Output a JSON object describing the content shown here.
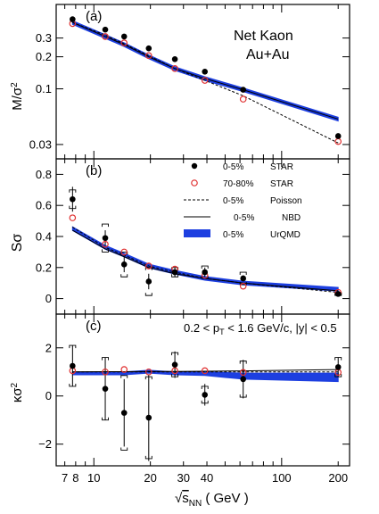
{
  "figure": {
    "panel_a_label": "(a)",
    "panel_b_label": "(b)",
    "panel_c_label": "(c)",
    "system_line1": "Net Kaon",
    "system_line2": "Au+Au",
    "kinematic_cut": "0.2 < p_T < 1.6 GeV/c, |y| < 0.5",
    "xlabel": "√s_NN ( GeV )"
  },
  "legend": {
    "star_central": {
      "centrality": "0-5%",
      "label": "STAR"
    },
    "star_peripheral": {
      "centrality": "70-80%",
      "label": "STAR"
    },
    "poisson": {
      "centrality": "0-5%",
      "label": "Poisson"
    },
    "nbd": {
      "centrality": "0-5%",
      "label": "NBD"
    },
    "urqmd": {
      "centrality": "0-5%",
      "label": "UrQMD"
    }
  },
  "chart_data": [
    {
      "type": "scatter",
      "panel": "a",
      "ylabel": "M/σ²",
      "yscale": "log",
      "ylim": [
        0.022,
        0.62
      ],
      "xscale": "log",
      "xlim": [
        6.3,
        230
      ],
      "x_ticks": [
        7,
        8,
        10,
        20,
        30,
        40,
        100,
        200
      ],
      "x_tick_labels": [
        "7",
        "8",
        "10",
        "20",
        "30",
        "40",
        "100",
        "200"
      ],
      "y_ticks": [
        0.03,
        0.1,
        0.2,
        0.3
      ],
      "y_tick_labels": [
        "0.03",
        "0.1",
        "0.2",
        "0.3"
      ],
      "series": [
        {
          "name": "0-5% STAR",
          "x": [
            7.7,
            11.5,
            14.5,
            19.6,
            27,
            39,
            62.4,
            200
          ],
          "y": [
            0.45,
            0.36,
            0.31,
            0.24,
            0.19,
            0.145,
            0.098,
            0.036
          ]
        },
        {
          "name": "70-80% STAR",
          "x": [
            7.7,
            11.5,
            14.5,
            19.6,
            27,
            39,
            62.4,
            200
          ],
          "y": [
            0.41,
            0.31,
            0.27,
            0.205,
            0.155,
            0.12,
            0.08,
            0.032
          ]
        },
        {
          "name": "0-5% Poisson",
          "x": [
            7.7,
            11.5,
            14.5,
            19.6,
            27,
            39,
            62.4,
            200
          ],
          "y": [
            0.42,
            0.32,
            0.265,
            0.205,
            0.155,
            0.12,
            0.086,
            0.031
          ]
        },
        {
          "name": "0-5% NBD",
          "x": [
            7.7,
            11.5,
            14.5,
            19.6,
            27,
            39,
            62.4,
            200
          ],
          "y": [
            0.42,
            0.31,
            0.26,
            0.2,
            0.155,
            0.125,
            0.098,
            0.052
          ]
        },
        {
          "name": "0-5% UrQMD",
          "x": [
            7.7,
            11.5,
            14.5,
            19.6,
            27,
            39,
            62.4,
            200
          ],
          "y": [
            0.42,
            0.31,
            0.26,
            0.2,
            0.155,
            0.125,
            0.098,
            0.052
          ]
        }
      ]
    },
    {
      "type": "scatter",
      "panel": "b",
      "ylabel": "Sσ",
      "yscale": "linear",
      "ylim": [
        -0.1,
        0.9
      ],
      "xscale": "log",
      "xlim": [
        6.3,
        230
      ],
      "y_ticks": [
        0,
        0.2,
        0.4,
        0.6,
        0.8
      ],
      "y_tick_labels": [
        "0",
        "0.2",
        "0.4",
        "0.6",
        "0.8"
      ],
      "series": [
        {
          "name": "0-5% STAR",
          "x": [
            7.7,
            11.5,
            14.5,
            19.6,
            27,
            39,
            62.4,
            200
          ],
          "y": [
            0.64,
            0.39,
            0.22,
            0.11,
            0.17,
            0.17,
            0.13,
            0.03
          ],
          "err": [
            0.08,
            0.05,
            0.05,
            0.05,
            0.03,
            0.03,
            0.02,
            0.01
          ],
          "syserr": [
            0.06,
            0.09,
            0.08,
            0.09,
            0.03,
            0.04,
            0.04,
            0.01
          ]
        },
        {
          "name": "70-80% STAR",
          "x": [
            7.7,
            11.5,
            14.5,
            19.6,
            27,
            39,
            62.4,
            200
          ],
          "y": [
            0.52,
            0.35,
            0.3,
            0.21,
            0.19,
            0.15,
            0.08,
            0.04
          ]
        },
        {
          "name": "0-5% Poisson",
          "x": [
            7.7,
            11.5,
            14.5,
            19.6,
            27,
            39,
            62.4,
            200
          ],
          "y": [
            0.46,
            0.33,
            0.28,
            0.21,
            0.17,
            0.13,
            0.1,
            0.04
          ]
        },
        {
          "name": "0-5% NBD",
          "x": [
            7.7,
            11.5,
            14.5,
            19.6,
            27,
            39,
            62.4,
            200
          ],
          "y": [
            0.44,
            0.32,
            0.27,
            0.2,
            0.16,
            0.13,
            0.1,
            0.05
          ]
        },
        {
          "name": "0-5% UrQMD",
          "x": [
            7.7,
            11.5,
            14.5,
            19.6,
            27,
            39,
            62.4,
            200
          ],
          "y": [
            0.45,
            0.33,
            0.28,
            0.21,
            0.17,
            0.13,
            0.1,
            0.06
          ]
        }
      ]
    },
    {
      "type": "scatter",
      "panel": "c",
      "ylabel": "κσ²",
      "yscale": "linear",
      "ylim": [
        -2.9,
        3.4
      ],
      "xscale": "log",
      "xlim": [
        6.3,
        230
      ],
      "y_ticks": [
        -2,
        0,
        2
      ],
      "y_tick_labels": [
        "−2",
        "0",
        "2"
      ],
      "series": [
        {
          "name": "0-5% STAR",
          "x": [
            7.7,
            11.5,
            14.5,
            19.6,
            27,
            39,
            62.4,
            200
          ],
          "y": [
            1.25,
            0.3,
            -0.7,
            -0.9,
            1.3,
            0.05,
            0.7,
            1.2
          ],
          "err": [
            0.85,
            1.3,
            1.4,
            1.8,
            0.55,
            0.45,
            0.8,
            0.4
          ],
          "syserr": [
            0.85,
            1.3,
            1.55,
            1.7,
            0.5,
            0.35,
            0.75,
            0.4
          ]
        },
        {
          "name": "70-80% STAR",
          "x": [
            7.7,
            11.5,
            14.5,
            19.6,
            27,
            39,
            62.4,
            200
          ],
          "y": [
            1.05,
            1.0,
            1.1,
            1.0,
            1.05,
            1.05,
            0.98,
            0.98
          ]
        },
        {
          "name": "0-5% Poisson",
          "x": [
            7.7,
            11.5,
            14.5,
            19.6,
            27,
            39,
            62.4,
            200
          ],
          "y": [
            1,
            1,
            1,
            1,
            1,
            1,
            1,
            1
          ]
        },
        {
          "name": "0-5% NBD",
          "x": [
            7.7,
            11.5,
            14.5,
            19.6,
            27,
            39,
            62.4,
            200
          ],
          "y": [
            1.0,
            1.01,
            1.01,
            1.02,
            1.02,
            1.03,
            1.04,
            1.1
          ]
        },
        {
          "name": "0-5% UrQMD",
          "x": [
            7.7,
            11.5,
            14.5,
            19.6,
            27,
            39,
            62.4,
            200
          ],
          "y": [
            0.95,
            0.95,
            0.95,
            1.02,
            0.95,
            0.95,
            0.85,
            0.8
          ],
          "band_lo": [
            0.88,
            0.88,
            0.88,
            0.95,
            0.88,
            0.85,
            0.7,
            0.6
          ],
          "band_hi": [
            1.0,
            1.0,
            1.0,
            1.07,
            1.0,
            1.0,
            0.95,
            0.95
          ]
        }
      ]
    }
  ],
  "colors": {
    "axis": "#000000",
    "star_central": "#000000",
    "star_peripheral": "#e03030",
    "urqmd": "#1d3fe0",
    "model_line": "#000000"
  }
}
